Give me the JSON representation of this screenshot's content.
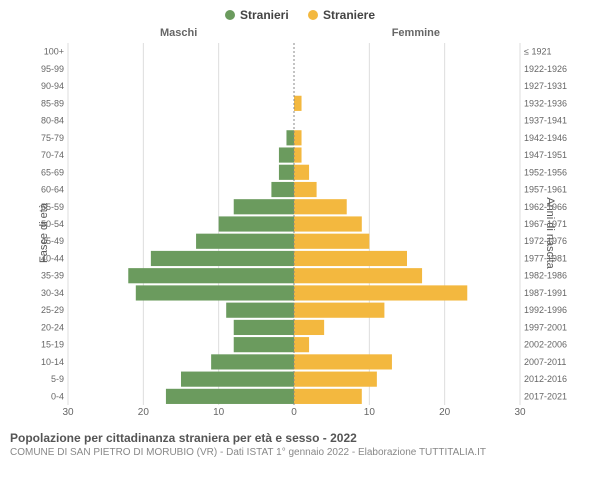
{
  "type": "population-pyramid",
  "legend": [
    {
      "label": "Stranieri",
      "color": "#6b9b5e"
    },
    {
      "label": "Straniere",
      "color": "#f3b83f"
    }
  ],
  "column_headers": {
    "left": "Maschi",
    "right": "Femmine"
  },
  "y_axis_left_title": "Fasce di età",
  "y_axis_right_title": "Anni di nascita",
  "title": "Popolazione per cittadinanza straniera per età e sesso - 2022",
  "subtitle": "COMUNE DI SAN PIETRO DI MORUBIO (VR) - Dati ISTAT 1° gennaio 2022 - Elaborazione TUTTITALIA.IT",
  "x_axis": {
    "min": -30,
    "max": 30,
    "ticks": [
      30,
      20,
      10,
      0,
      10,
      20,
      30
    ]
  },
  "bar_gap_ratio": 0.12,
  "background": "#ffffff",
  "grid_color": "#dddddd",
  "center_line_color": "#888888",
  "label_fontsize": 9,
  "rows": [
    {
      "age": "100+",
      "birth": "≤ 1921",
      "m": 0,
      "f": 0
    },
    {
      "age": "95-99",
      "birth": "1922-1926",
      "m": 0,
      "f": 0
    },
    {
      "age": "90-94",
      "birth": "1927-1931",
      "m": 0,
      "f": 0
    },
    {
      "age": "85-89",
      "birth": "1932-1936",
      "m": 0,
      "f": 1
    },
    {
      "age": "80-84",
      "birth": "1937-1941",
      "m": 0,
      "f": 0
    },
    {
      "age": "75-79",
      "birth": "1942-1946",
      "m": 1,
      "f": 1
    },
    {
      "age": "70-74",
      "birth": "1947-1951",
      "m": 2,
      "f": 1
    },
    {
      "age": "65-69",
      "birth": "1952-1956",
      "m": 2,
      "f": 2
    },
    {
      "age": "60-64",
      "birth": "1957-1961",
      "m": 3,
      "f": 3
    },
    {
      "age": "55-59",
      "birth": "1962-1966",
      "m": 8,
      "f": 7
    },
    {
      "age": "50-54",
      "birth": "1967-1971",
      "m": 10,
      "f": 9
    },
    {
      "age": "45-49",
      "birth": "1972-1976",
      "m": 13,
      "f": 10
    },
    {
      "age": "40-44",
      "birth": "1977-1981",
      "m": 19,
      "f": 15
    },
    {
      "age": "35-39",
      "birth": "1982-1986",
      "m": 22,
      "f": 17
    },
    {
      "age": "30-34",
      "birth": "1987-1991",
      "m": 21,
      "f": 23
    },
    {
      "age": "25-29",
      "birth": "1992-1996",
      "m": 9,
      "f": 12
    },
    {
      "age": "20-24",
      "birth": "1997-2001",
      "m": 8,
      "f": 4
    },
    {
      "age": "15-19",
      "birth": "2002-2006",
      "m": 8,
      "f": 2
    },
    {
      "age": "10-14",
      "birth": "2007-2011",
      "m": 11,
      "f": 13
    },
    {
      "age": "5-9",
      "birth": "2012-2016",
      "m": 15,
      "f": 11
    },
    {
      "age": "0-4",
      "birth": "2017-2021",
      "m": 17,
      "f": 9
    }
  ]
}
